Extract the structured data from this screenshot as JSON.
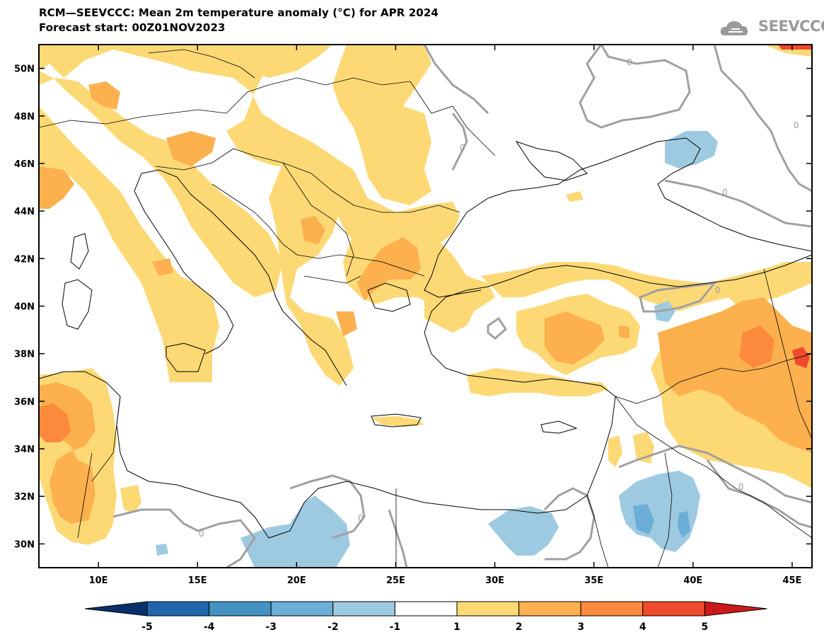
{
  "header": {
    "title": "RCM—SEEVCCC: Mean 2m temperature anomaly (°C) for APR 2024",
    "subtitle": "Forecast start: 00Z01NOV2023"
  },
  "logo": {
    "text": "SEEVCCC",
    "icon": "cloud-icon"
  },
  "map": {
    "lon_range": [
      7,
      46
    ],
    "lat_range": [
      29,
      51
    ],
    "lon_ticks": [
      10,
      15,
      20,
      25,
      30,
      35,
      40,
      45
    ],
    "lon_labels": [
      "10E",
      "15E",
      "20E",
      "25E",
      "30E",
      "35E",
      "40E",
      "45E"
    ],
    "lat_ticks": [
      30,
      32,
      34,
      36,
      38,
      40,
      42,
      44,
      46,
      48,
      50
    ],
    "lat_labels": [
      "30N",
      "32N",
      "34N",
      "36N",
      "38N",
      "40N",
      "42N",
      "44N",
      "46N",
      "48N",
      "50N"
    ],
    "contour_label": "0"
  },
  "colorbar": {
    "levels": [
      "-5",
      "-4",
      "-3",
      "-2",
      "-1",
      "1",
      "2",
      "3",
      "4",
      "5"
    ],
    "colors": [
      "#08306b",
      "#2166ac",
      "#4393c3",
      "#6baed6",
      "#9ecae1",
      "#ffffff",
      "#fdd976",
      "#fdb04e",
      "#fc8a3c",
      "#f04a2c",
      "#cc1a1a"
    ]
  }
}
